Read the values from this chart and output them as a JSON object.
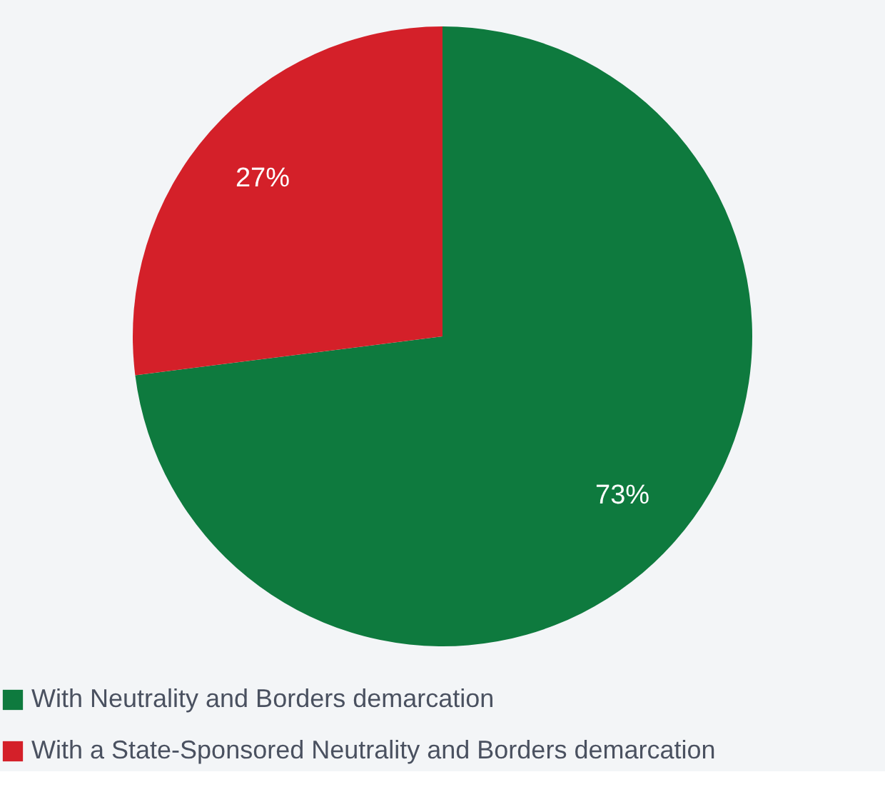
{
  "chart_data": {
    "type": "pie",
    "categories": [
      "With Neutrality and Borders demarcation",
      "With a State-Sponsored Neutrality and Borders demarcation"
    ],
    "values": [
      73,
      27
    ],
    "colors": [
      "#0e7a3e",
      "#d42029"
    ],
    "value_labels": [
      "73%",
      "27%"
    ],
    "legend": "bottom left"
  }
}
